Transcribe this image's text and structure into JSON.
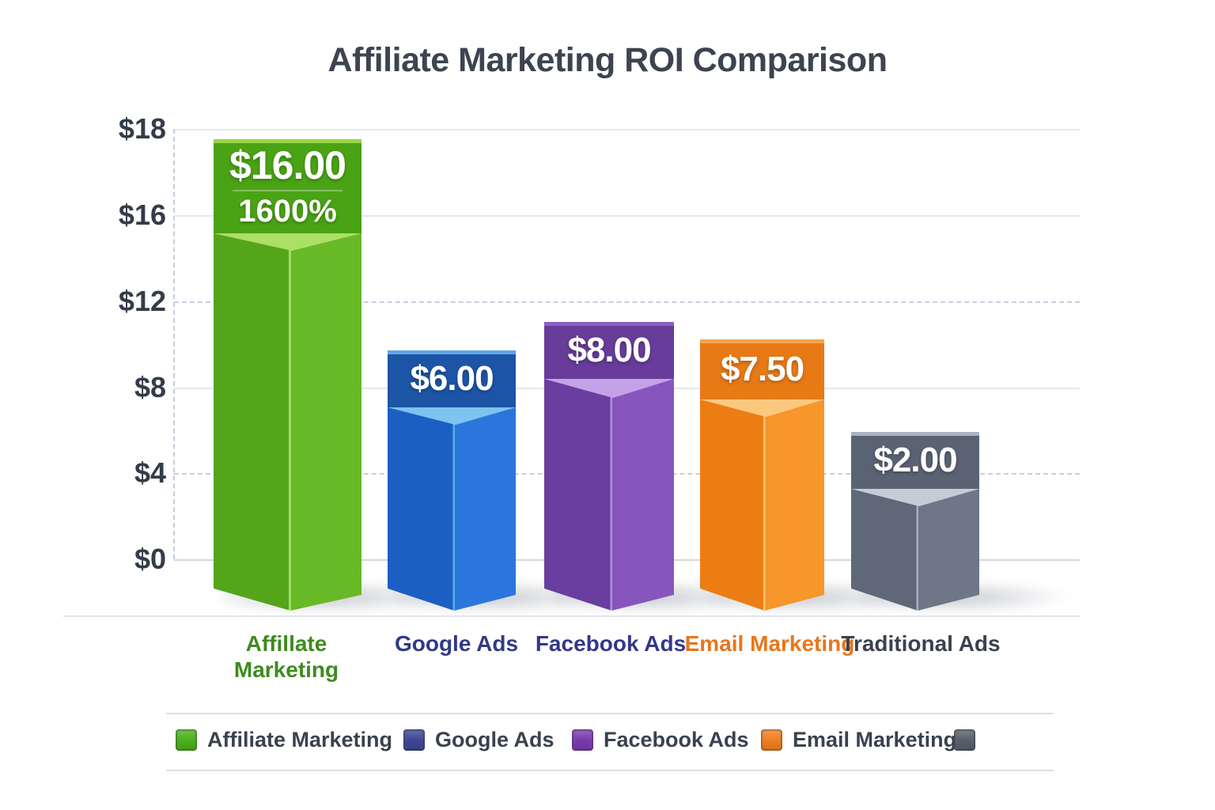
{
  "title": "Affiliate Marketing ROI Comparison",
  "chart_data": {
    "type": "bar",
    "title": "Affiliate Marketing ROI Comparison",
    "categories": [
      "Affillate Marketing",
      "Google Ads",
      "Facebook Ads",
      "Email Marketing",
      "Traditional Ads"
    ],
    "values": [
      16.0,
      6.0,
      8.0,
      7.5,
      2.0
    ],
    "value_labels": [
      "$16.00",
      "$6.00",
      "$8.00",
      "$7.50",
      "$2.00"
    ],
    "roi_annotation": {
      "category": "Affillate Marketing",
      "text": "1600%"
    },
    "xlabel": "",
    "ylabel": "",
    "y_ticks": [
      "$18",
      "$16",
      "$12",
      "$8",
      "$4",
      "$0"
    ],
    "ylim": [
      0,
      18
    ],
    "grid": true,
    "legend_position": "bottom"
  },
  "bars": [
    {
      "label": "Affillate Marketing",
      "value": 16.0,
      "value_label": "$16.00",
      "annotation": "1600%",
      "label_color": "#3e8a20",
      "colors": {
        "top_strip": "#97d548",
        "header": "#4aa315",
        "facet": "#abdf66",
        "body_left": "#55a51b",
        "body_right": "#68b926",
        "edge": "#a3dc60"
      }
    },
    {
      "label": "Google Ads",
      "value": 6.0,
      "value_label": "$6.00",
      "annotation": null,
      "label_color": "#303a85",
      "colors": {
        "top_strip": "#5fa5e8",
        "header": "#1d55a6",
        "facet": "#7fc3ef",
        "body_left": "#1c5fc2",
        "body_right": "#2b76dc",
        "edge": "#55b0ea"
      }
    },
    {
      "label": "Facebook Ads",
      "value": 8.0,
      "value_label": "$8.00",
      "annotation": null,
      "label_color": "#34388a",
      "colors": {
        "top_strip": "#8a5fc2",
        "header": "#673c9b",
        "facet": "#c4a2e9",
        "body_left": "#6a3da1",
        "body_right": "#8656bd",
        "edge": "#b48fe0"
      }
    },
    {
      "label": "Email Marketing",
      "value": 7.5,
      "value_label": "$7.50",
      "annotation": null,
      "label_color": "#e8761c",
      "colors": {
        "top_strip": "#f9a34a",
        "header": "#e87a16",
        "facet": "#fcc87e",
        "body_left": "#ec7d13",
        "body_right": "#f6962b",
        "edge": "#fbc170"
      }
    },
    {
      "label": "Traditional Ads",
      "value": 2.0,
      "value_label": "$2.00",
      "annotation": null,
      "label_color": "#3a4150",
      "colors": {
        "top_strip": "#aab3c0",
        "header": "#5a6373",
        "facet": "#c4ccd7",
        "body_left": "#5e6878",
        "body_right": "#6d7788",
        "edge": "#a7b1bd"
      }
    }
  ],
  "legend": {
    "items": [
      {
        "label": "Affiliate Marketing",
        "color": "#4db31c"
      },
      {
        "label": "Google Ads",
        "color": "#3e4897"
      },
      {
        "label": "Facebook Ads",
        "color": "#7a3cb0"
      },
      {
        "label": "Email Marketing",
        "color": "#f58020"
      },
      {
        "label": "",
        "color": "#59626f"
      }
    ]
  }
}
